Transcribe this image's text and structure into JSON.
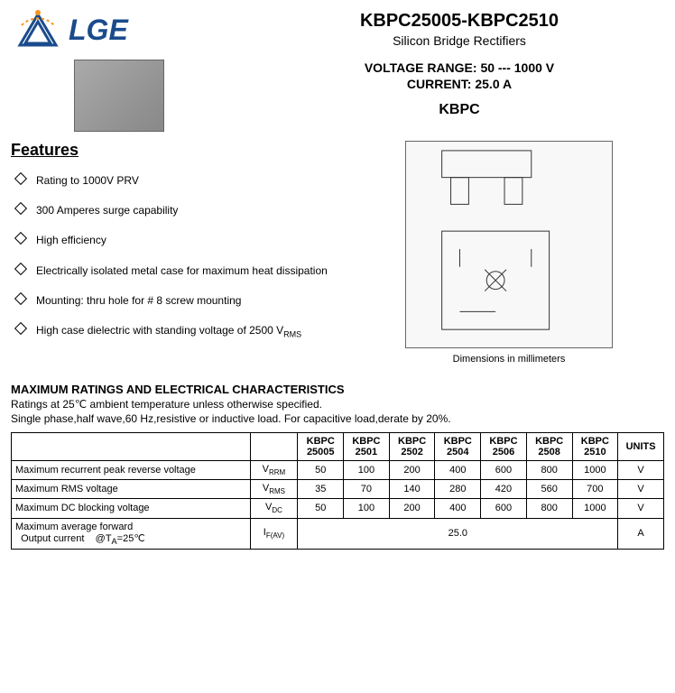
{
  "logo": {
    "text": "LGE"
  },
  "title": {
    "main": "KBPC25005-KBPC2510",
    "sub": "Silicon Bridge Rectifiers",
    "voltage_label": "VOLTAGE  RANGE:",
    "voltage_value": "50 --- 1000 V",
    "current_label": "CURRENT:",
    "current_value": "25.0 A",
    "package": "KBPC"
  },
  "features": {
    "heading": "Features",
    "items": [
      "Rating to 1000V PRV",
      "300 Amperes surge capability",
      "High efficiency",
      "Electrically isolated metal case for maximum heat dissipation",
      "Mounting: thru hole for # 8 screw mounting",
      "High case dielectric with standing voltage of 2500 V"
    ],
    "rms_suffix": "RMS"
  },
  "diagram_caption": "Dimensions in millimeters",
  "ratings": {
    "title": "MAXIMUM RATINGS AND ELECTRICAL CHARACTERISTICS",
    "note1": "Ratings at 25℃ ambient temperature unless otherwise specified.",
    "note2": "Single phase,half wave,60 Hz,resistive or inductive load. For capacitive load,derate by 20%."
  },
  "table": {
    "headers": [
      "KBPC 25005",
      "KBPC 2501",
      "KBPC 2502",
      "KBPC 2504",
      "KBPC 2506",
      "KBPC 2508",
      "KBPC 2510",
      "UNITS"
    ],
    "rows": [
      {
        "param": "Maximum recurrent peak reverse voltage",
        "sym": "V",
        "sub": "RRM",
        "vals": [
          "50",
          "100",
          "200",
          "400",
          "600",
          "800",
          "1000"
        ],
        "unit": "V"
      },
      {
        "param": "Maximum RMS voltage",
        "sym": "V",
        "sub": "RMS",
        "vals": [
          "35",
          "70",
          "140",
          "280",
          "420",
          "560",
          "700"
        ],
        "unit": "V"
      },
      {
        "param": "Maximum DC blocking voltage",
        "sym": "V",
        "sub": "DC",
        "vals": [
          "50",
          "100",
          "200",
          "400",
          "600",
          "800",
          "1000"
        ],
        "unit": "V"
      },
      {
        "param_html": "Maximum average forward<br>&nbsp;&nbsp;Output current&nbsp;&nbsp;&nbsp;&nbsp;@T<sub>A</sub>=25℃",
        "sym": "I",
        "sub": "F(AV)",
        "span_val": "25.0",
        "unit": "A"
      }
    ]
  },
  "colors": {
    "logo_blue": "#1a4b8c",
    "logo_orange": "#f7941e",
    "text": "#000000",
    "background": "#ffffff",
    "border": "#000000"
  }
}
